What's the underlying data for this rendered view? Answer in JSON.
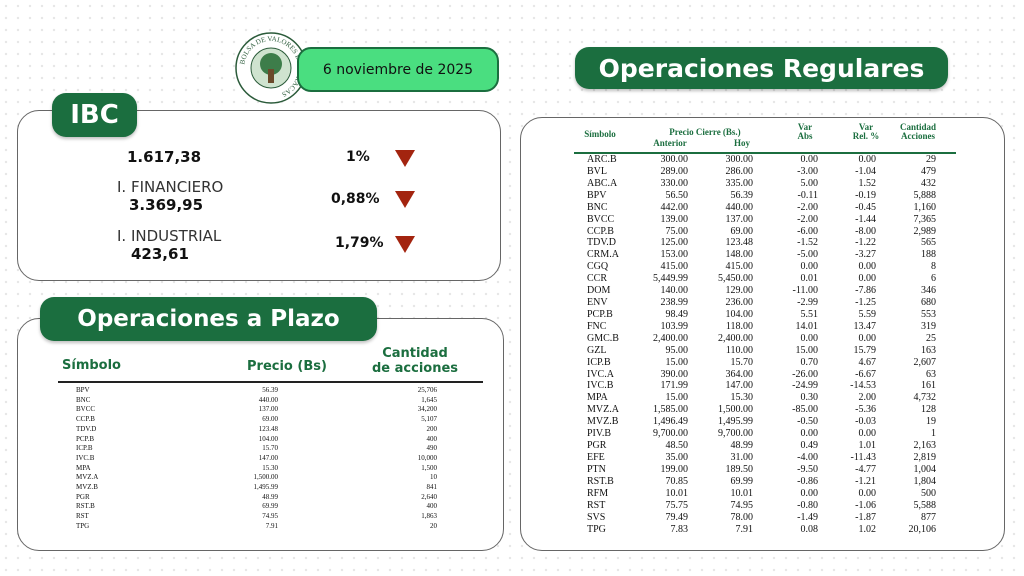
{
  "header": {
    "logo_text": "BOLSA DE VALORES DE CARACAS",
    "date": "6 noviembre de 2025"
  },
  "ibc": {
    "title": "IBC",
    "rows": [
      {
        "value": "1.617,38",
        "change": "1%"
      },
      {
        "label": "I. FINANCIERO",
        "value": "3.369,95",
        "change": "0,88%"
      },
      {
        "label": "I. INDUSTRIAL",
        "value": "423,61",
        "change": "1,79%"
      }
    ]
  },
  "plazo": {
    "title": "Operaciones a Plazo",
    "headers": [
      "Símbolo",
      "Precio (Bs)",
      "Cantidad",
      "de acciones"
    ],
    "rows": [
      [
        "BPV",
        "56.39",
        "25,706"
      ],
      [
        "BNC",
        "440.00",
        "1,645"
      ],
      [
        "BVCC",
        "137.00",
        "34,200"
      ],
      [
        "CCP.B",
        "69.00",
        "5,107"
      ],
      [
        "TDV.D",
        "123.48",
        "200"
      ],
      [
        "PCP.B",
        "104.00",
        "400"
      ],
      [
        "ICP.B",
        "15.70",
        "490"
      ],
      [
        "IVC.B",
        "147.00",
        "10,000"
      ],
      [
        "MPA",
        "15.30",
        "1,500"
      ],
      [
        "MVZ.A",
        "1,500.00",
        "10"
      ],
      [
        "MVZ.B",
        "1,495.99",
        "841"
      ],
      [
        "PGR",
        "48.99",
        "2,640"
      ],
      [
        "RST.B",
        "69.99",
        "400"
      ],
      [
        "RST",
        "74.95",
        "1,863"
      ],
      [
        "TPG",
        "7.91",
        "20"
      ]
    ]
  },
  "regulares": {
    "title": "Operaciones Regulares",
    "headers": {
      "symbol": "Símbolo",
      "price": "Precio Cierre (Bs.)",
      "prev": "Anterior",
      "today": "Hoy",
      "var_abs": [
        "Var",
        "Abs"
      ],
      "var_rel": [
        "Var",
        "Rel. %"
      ],
      "qty": [
        "Cantidad",
        "Acciones"
      ]
    },
    "rows": [
      [
        "ARC.B",
        "300.00",
        "300.00",
        "0.00",
        "0.00",
        "29"
      ],
      [
        "BVL",
        "289.00",
        "286.00",
        "-3.00",
        "-1.04",
        "479"
      ],
      [
        "ABC.A",
        "330.00",
        "335.00",
        "5.00",
        "1.52",
        "432"
      ],
      [
        "BPV",
        "56.50",
        "56.39",
        "-0.11",
        "-0.19",
        "5,888"
      ],
      [
        "BNC",
        "442.00",
        "440.00",
        "-2.00",
        "-0.45",
        "1,160"
      ],
      [
        "BVCC",
        "139.00",
        "137.00",
        "-2.00",
        "-1.44",
        "7,365"
      ],
      [
        "CCP.B",
        "75.00",
        "69.00",
        "-6.00",
        "-8.00",
        "2,989"
      ],
      [
        "TDV.D",
        "125.00",
        "123.48",
        "-1.52",
        "-1.22",
        "565"
      ],
      [
        "CRM.A",
        "153.00",
        "148.00",
        "-5.00",
        "-3.27",
        "188"
      ],
      [
        "CGQ",
        "415.00",
        "415.00",
        "0.00",
        "0.00",
        "8"
      ],
      [
        "CCR",
        "5,449.99",
        "5,450.00",
        "0.01",
        "0.00",
        "6"
      ],
      [
        "DOM",
        "140.00",
        "129.00",
        "-11.00",
        "-7.86",
        "346"
      ],
      [
        "ENV",
        "238.99",
        "236.00",
        "-2.99",
        "-1.25",
        "680"
      ],
      [
        "PCP.B",
        "98.49",
        "104.00",
        "5.51",
        "5.59",
        "553"
      ],
      [
        "FNC",
        "103.99",
        "118.00",
        "14.01",
        "13.47",
        "319"
      ],
      [
        "GMC.B",
        "2,400.00",
        "2,400.00",
        "0.00",
        "0.00",
        "25"
      ],
      [
        "GZL",
        "95.00",
        "110.00",
        "15.00",
        "15.79",
        "163"
      ],
      [
        "ICP.B",
        "15.00",
        "15.70",
        "0.70",
        "4.67",
        "2,607"
      ],
      [
        "IVC.A",
        "390.00",
        "364.00",
        "-26.00",
        "-6.67",
        "63"
      ],
      [
        "IVC.B",
        "171.99",
        "147.00",
        "-24.99",
        "-14.53",
        "161"
      ],
      [
        "MPA",
        "15.00",
        "15.30",
        "0.30",
        "2.00",
        "4,732"
      ],
      [
        "MVZ.A",
        "1,585.00",
        "1,500.00",
        "-85.00",
        "-5.36",
        "128"
      ],
      [
        "MVZ.B",
        "1,496.49",
        "1,495.99",
        "-0.50",
        "-0.03",
        "19"
      ],
      [
        "PIV.B",
        "9,700.00",
        "9,700.00",
        "0.00",
        "0.00",
        "1"
      ],
      [
        "PGR",
        "48.50",
        "48.99",
        "0.49",
        "1.01",
        "2,163"
      ],
      [
        "EFE",
        "35.00",
        "31.00",
        "-4.00",
        "-11.43",
        "2,819"
      ],
      [
        "PTN",
        "199.00",
        "189.50",
        "-9.50",
        "-4.77",
        "1,004"
      ],
      [
        "RST.B",
        "70.85",
        "69.99",
        "-0.86",
        "-1.21",
        "1,804"
      ],
      [
        "RFM",
        "10.01",
        "10.01",
        "0.00",
        "0.00",
        "500"
      ],
      [
        "RST",
        "75.75",
        "74.95",
        "-0.80",
        "-1.06",
        "5,588"
      ],
      [
        "SVS",
        "79.49",
        "78.00",
        "-1.49",
        "-1.87",
        "877"
      ],
      [
        "TPG",
        "7.83",
        "7.91",
        "0.08",
        "1.02",
        "20,106"
      ]
    ]
  }
}
